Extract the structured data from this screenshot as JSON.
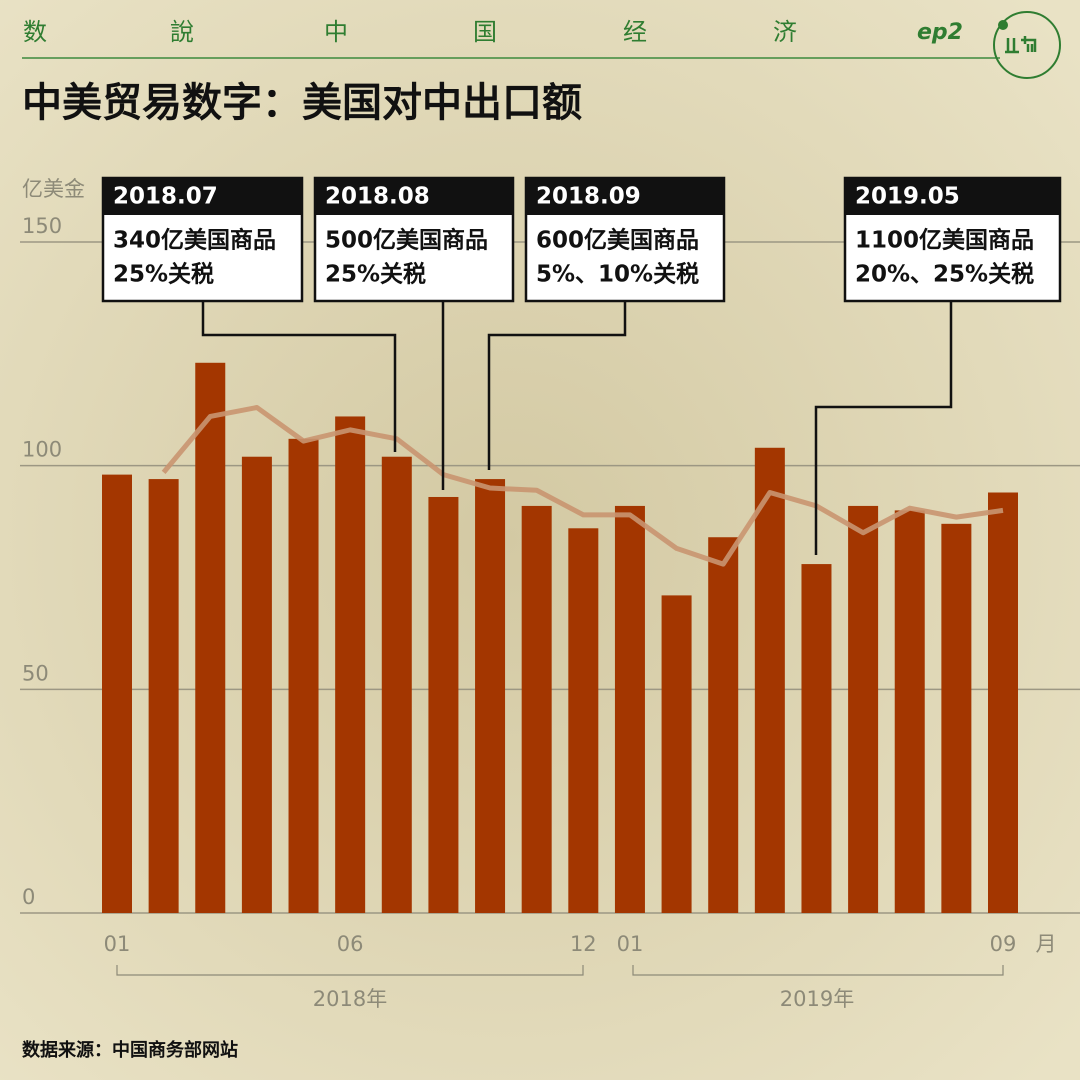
{
  "header": {
    "brand": [
      "数",
      "說",
      "中",
      "国",
      "经",
      "济"
    ],
    "episode": "ep2"
  },
  "chart_data": {
    "type": "bar",
    "title": "中美贸易数字：美国对中出口额",
    "y_label": "亿美金",
    "x_unit": "月",
    "categories": [
      "01",
      null,
      null,
      null,
      null,
      "06",
      null,
      null,
      null,
      null,
      "12",
      "01",
      null,
      null,
      null,
      null,
      null,
      null,
      null,
      "09"
    ],
    "year_groups": [
      "2018年",
      "2019年"
    ],
    "values": [
      98,
      97,
      123,
      102,
      106,
      111,
      102,
      93,
      97,
      91,
      86,
      91,
      71,
      84,
      104,
      78,
      91,
      90,
      87,
      94
    ],
    "color": "#a33600",
    "trend": {
      "color": "#c99570",
      "values": [
        null,
        98.5,
        111,
        113,
        105.5,
        108,
        106,
        98,
        95,
        94.5,
        89,
        89,
        81.5,
        78,
        94,
        91,
        85,
        90.5,
        88.5,
        90
      ]
    },
    "ylim": [
      0,
      150
    ],
    "yticks": [
      0,
      50,
      100,
      150
    ],
    "grid": true,
    "annotations": [
      {
        "date": "2018.07",
        "lines": [
          "340亿美国商品",
          "25%关税"
        ]
      },
      {
        "date": "2018.08",
        "lines": [
          "500亿美国商品",
          "25%关税"
        ]
      },
      {
        "date": "2018.09",
        "lines": [
          "600亿美国商品",
          "5%、10%关税"
        ]
      },
      {
        "date": "2019.05",
        "lines": [
          "1100亿美国商品",
          "20%、25%关税"
        ]
      }
    ],
    "source": "数据来源：中国商务部网站"
  }
}
